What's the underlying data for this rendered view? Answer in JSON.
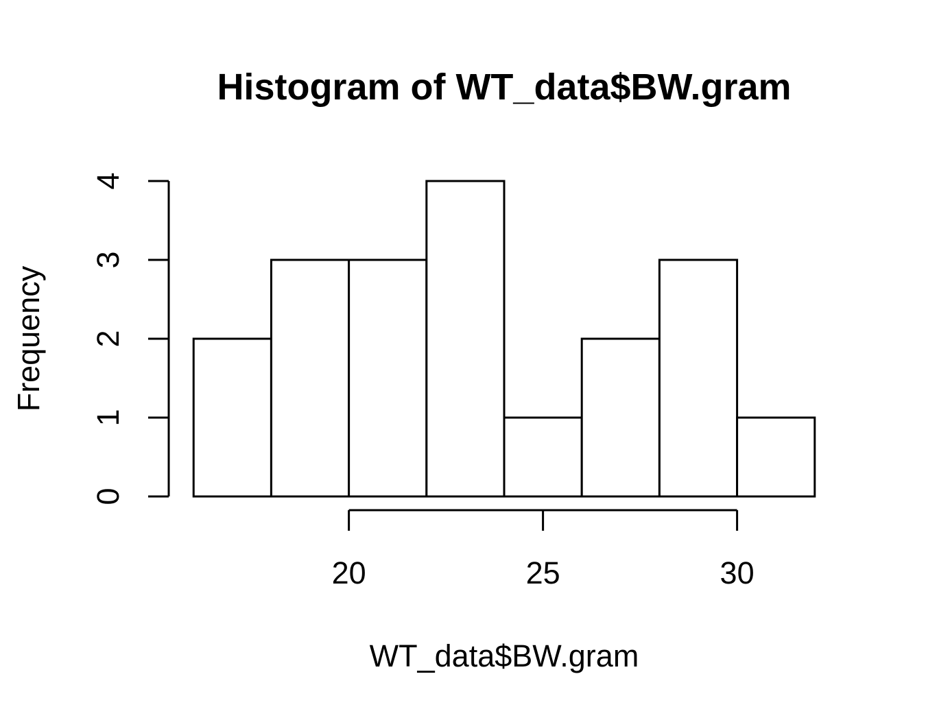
{
  "chart_data": {
    "type": "bar",
    "title": "Histogram of WT_data$BW.gram",
    "xlabel": "WT_data$BW.gram",
    "ylabel": "Frequency",
    "bins": [
      {
        "x0": 16,
        "x1": 18,
        "count": 2
      },
      {
        "x0": 18,
        "x1": 20,
        "count": 3
      },
      {
        "x0": 20,
        "x1": 22,
        "count": 3
      },
      {
        "x0": 22,
        "x1": 24,
        "count": 4
      },
      {
        "x0": 24,
        "x1": 26,
        "count": 1
      },
      {
        "x0": 26,
        "x1": 28,
        "count": 2
      },
      {
        "x0": 28,
        "x1": 30,
        "count": 3
      },
      {
        "x0": 30,
        "x1": 32,
        "count": 1
      }
    ],
    "xticks": [
      20,
      25,
      30
    ],
    "yticks": [
      0,
      1,
      2,
      3,
      4
    ],
    "xlim": [
      15.36,
      32.64
    ],
    "ylim": [
      0,
      4
    ],
    "grid": false,
    "colors": {
      "bar_fill": "#ffffff",
      "bar_stroke": "#000000"
    }
  }
}
